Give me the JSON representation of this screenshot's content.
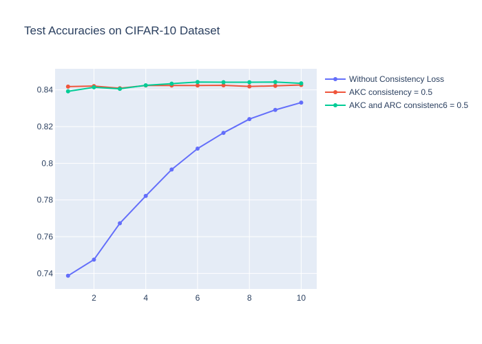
{
  "chart_data": {
    "type": "line",
    "title": "Test Accuracies on CIFAR-10 Dataset",
    "xlabel": "",
    "ylabel": "",
    "x": [
      1,
      2,
      3,
      4,
      5,
      6,
      7,
      8,
      9,
      10
    ],
    "xlim": [
      0.5,
      10.6
    ],
    "ylim": [
      0.7315,
      0.8515
    ],
    "x_ticks": [
      2,
      4,
      6,
      8,
      10
    ],
    "y_ticks": [
      0.74,
      0.76,
      0.78,
      0.8,
      0.82,
      0.84
    ],
    "y_tick_labels": [
      "0.74",
      "0.76",
      "0.78",
      "0.8",
      "0.82",
      "0.84"
    ],
    "grid": true,
    "legend_position": "top-right, outside plot",
    "colors": {
      "plot_background": "#e5ecf6",
      "grid": "#ffffff",
      "text": "#2a3f5f"
    },
    "series": [
      {
        "name": "Without Consistency Loss",
        "color": "#636efa",
        "values": [
          0.7387,
          0.7475,
          0.7673,
          0.7822,
          0.7966,
          0.808,
          0.8166,
          0.8241,
          0.8291,
          0.8331
        ]
      },
      {
        "name": "AKC consistency = 0.5",
        "color": "#ef553b",
        "values": [
          0.8418,
          0.8421,
          0.8409,
          0.8424,
          0.8424,
          0.8424,
          0.8425,
          0.8419,
          0.8422,
          0.8427
        ]
      },
      {
        "name": "AKC and ARC consistenc6 = 0.5",
        "color": "#00cc96",
        "values": [
          0.8392,
          0.8414,
          0.8406,
          0.8425,
          0.8434,
          0.8443,
          0.8442,
          0.8442,
          0.8443,
          0.8436
        ]
      }
    ]
  }
}
